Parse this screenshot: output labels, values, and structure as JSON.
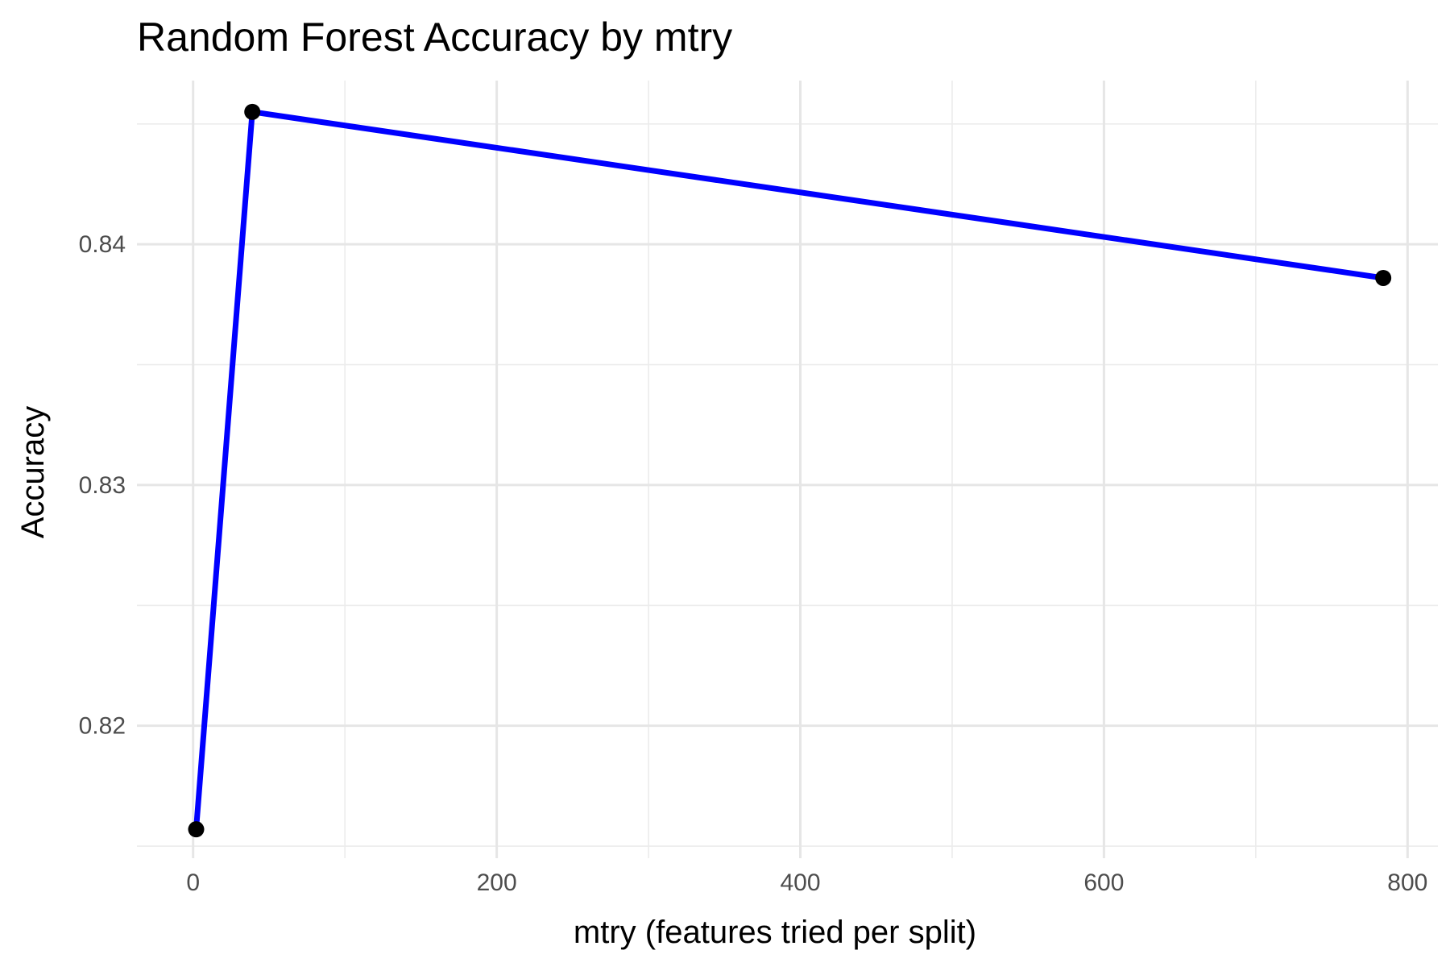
{
  "chart_data": {
    "type": "line",
    "title": "Random Forest Accuracy by mtry",
    "xlabel": "mtry (features tried per split)",
    "ylabel": "Accuracy",
    "xlim": [
      -37,
      820
    ],
    "ylim": [
      0.8145,
      0.8468
    ],
    "x_ticks_major": [
      0,
      200,
      400,
      600,
      800
    ],
    "x_tick_labels": [
      "0",
      "200",
      "400",
      "600",
      "800"
    ],
    "x_ticks_minor": [
      100,
      300,
      500,
      700
    ],
    "y_ticks_major": [
      0.82,
      0.83,
      0.84
    ],
    "y_tick_labels": [
      "0.82",
      "0.83",
      "0.84"
    ],
    "y_ticks_minor": [
      0.815,
      0.825,
      0.835,
      0.845
    ],
    "grid": true,
    "line_color": "#0000ff",
    "point_color": "#000000",
    "series": [
      {
        "name": "Accuracy",
        "x": [
          2,
          39,
          784
        ],
        "y": [
          0.8157,
          0.8455,
          0.8386
        ]
      }
    ]
  }
}
